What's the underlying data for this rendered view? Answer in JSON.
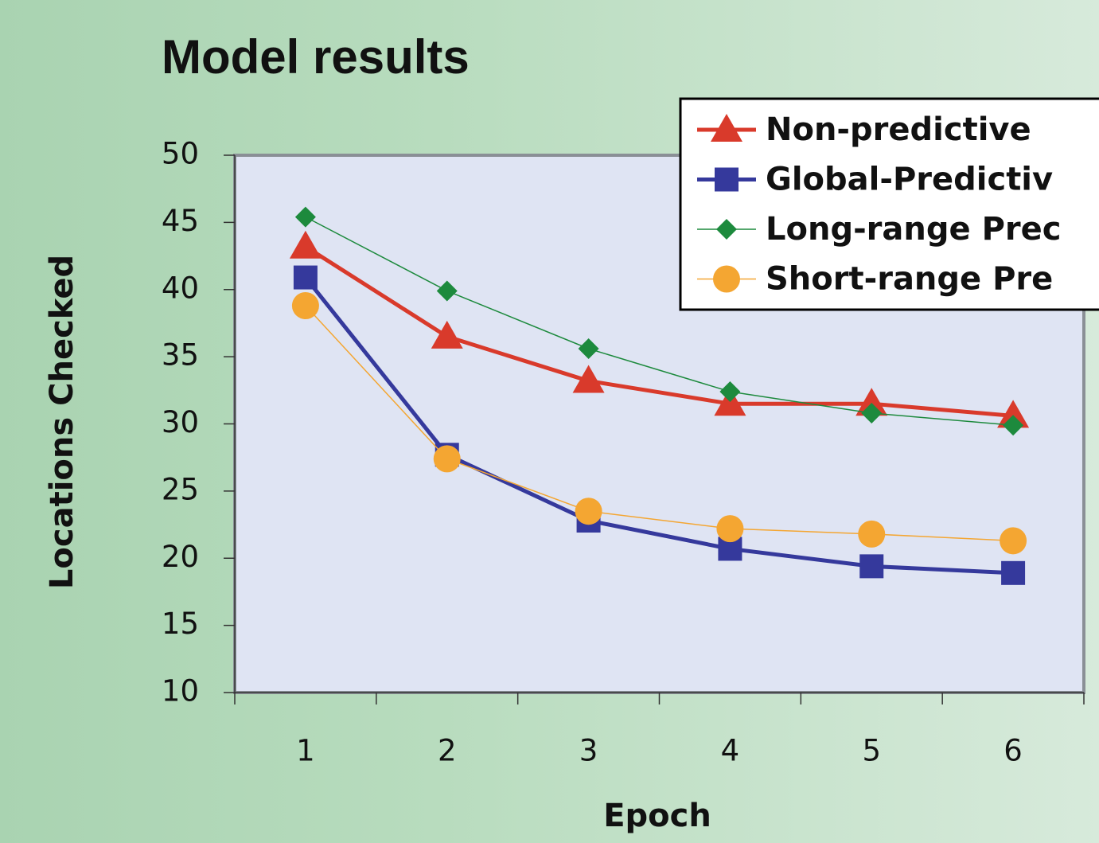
{
  "chart_data": {
    "type": "line",
    "title": "Model results",
    "x_label": "Epoch",
    "y_label": "Locations Checked",
    "categories": [
      "1",
      "2",
      "3",
      "4",
      "5",
      "6"
    ],
    "series": [
      {
        "name": "Non-predictive",
        "color": "#d93a2b",
        "marker": "triangle",
        "values": [
          43.2,
          36.5,
          33.2,
          31.5,
          31.5,
          30.6
        ]
      },
      {
        "name": "Global-Predictiv",
        "color": "#35399c",
        "marker": "square",
        "values": [
          40.9,
          27.7,
          22.8,
          20.7,
          19.4,
          18.9
        ]
      },
      {
        "name": "Long-range Prec",
        "color": "#1d8a3d",
        "marker": "diamond",
        "values": [
          45.4,
          39.9,
          35.6,
          32.4,
          30.8,
          29.9
        ]
      },
      {
        "name": "Short-range Pre",
        "color": "#f4a632",
        "marker": "circle",
        "values": [
          38.8,
          27.4,
          23.5,
          22.2,
          21.8,
          21.3
        ]
      }
    ],
    "ylim": [
      10,
      50
    ],
    "yticks": [
      10,
      15,
      20,
      25,
      30,
      35,
      40,
      45,
      50
    ],
    "legend": "upper right"
  }
}
